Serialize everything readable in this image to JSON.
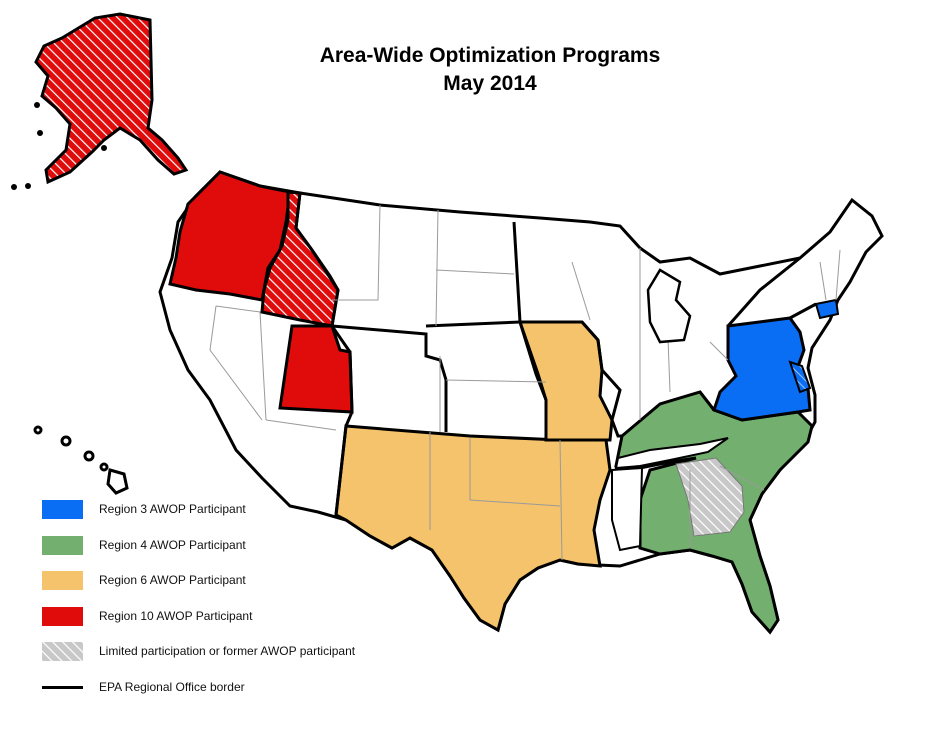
{
  "map": {
    "title_line1": "Area-Wide Optimization Programs",
    "title_line2": "May 2014",
    "colors": {
      "region3": "#0a6ef5",
      "region4": "#73b06f",
      "region6": "#f4c36b",
      "region10": "#e00c0c",
      "none": "#ffffff",
      "border": "#000000",
      "state_line": "#9a9a9a"
    },
    "legend": [
      {
        "key": "region3",
        "label": "Region 3 AWOP Participant",
        "color": "#0a6ef5"
      },
      {
        "key": "region4",
        "label": "Region 4 AWOP Participant",
        "color": "#73b06f"
      },
      {
        "key": "region6",
        "label": "Region 6 AWOP Participant",
        "color": "#f4c36b"
      },
      {
        "key": "region10",
        "label": "Region 10 AWOP Participant",
        "color": "#e00c0c"
      },
      {
        "key": "hatched",
        "label": "Limited participation or former AWOP participant"
      },
      {
        "key": "border",
        "label": "EPA Regional Office border"
      }
    ]
  }
}
